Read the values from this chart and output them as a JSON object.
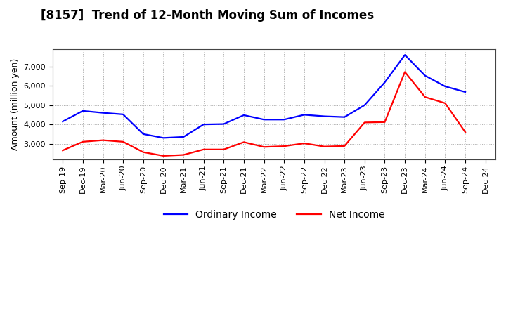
{
  "title": "[8157]  Trend of 12-Month Moving Sum of Incomes",
  "ylabel": "Amount (million yen)",
  "x_labels": [
    "Sep-19",
    "Dec-19",
    "Mar-20",
    "Jun-20",
    "Sep-20",
    "Dec-20",
    "Mar-21",
    "Jun-21",
    "Sep-21",
    "Dec-21",
    "Mar-22",
    "Jun-22",
    "Sep-22",
    "Dec-22",
    "Mar-23",
    "Jun-23",
    "Sep-23",
    "Dec-23",
    "Mar-24",
    "Jun-24",
    "Sep-24",
    "Dec-24"
  ],
  "ordinary_income": [
    4150,
    4700,
    4600,
    4520,
    3500,
    3300,
    3350,
    4000,
    4020,
    4480,
    4250,
    4250,
    4500,
    4420,
    4380,
    5000,
    6180,
    7600,
    6530,
    5970,
    5680,
    null
  ],
  "net_income": [
    2650,
    3100,
    3180,
    3100,
    2560,
    2370,
    2420,
    2700,
    2700,
    3080,
    2830,
    2870,
    3020,
    2850,
    2880,
    4100,
    4120,
    6720,
    5420,
    5100,
    3600,
    null
  ],
  "ordinary_color": "#0000FF",
  "net_color": "#FF0000",
  "background_color": "#FFFFFF",
  "plot_bg_color": "#FFFFFF",
  "grid_color": "#AAAAAA",
  "ylim": [
    2200,
    7900
  ],
  "yticks": [
    3000,
    4000,
    5000,
    6000,
    7000
  ],
  "legend_ordinary": "Ordinary Income",
  "legend_net": "Net Income",
  "title_fontsize": 12,
  "axis_fontsize": 9,
  "tick_fontsize": 8,
  "line_width": 1.6
}
